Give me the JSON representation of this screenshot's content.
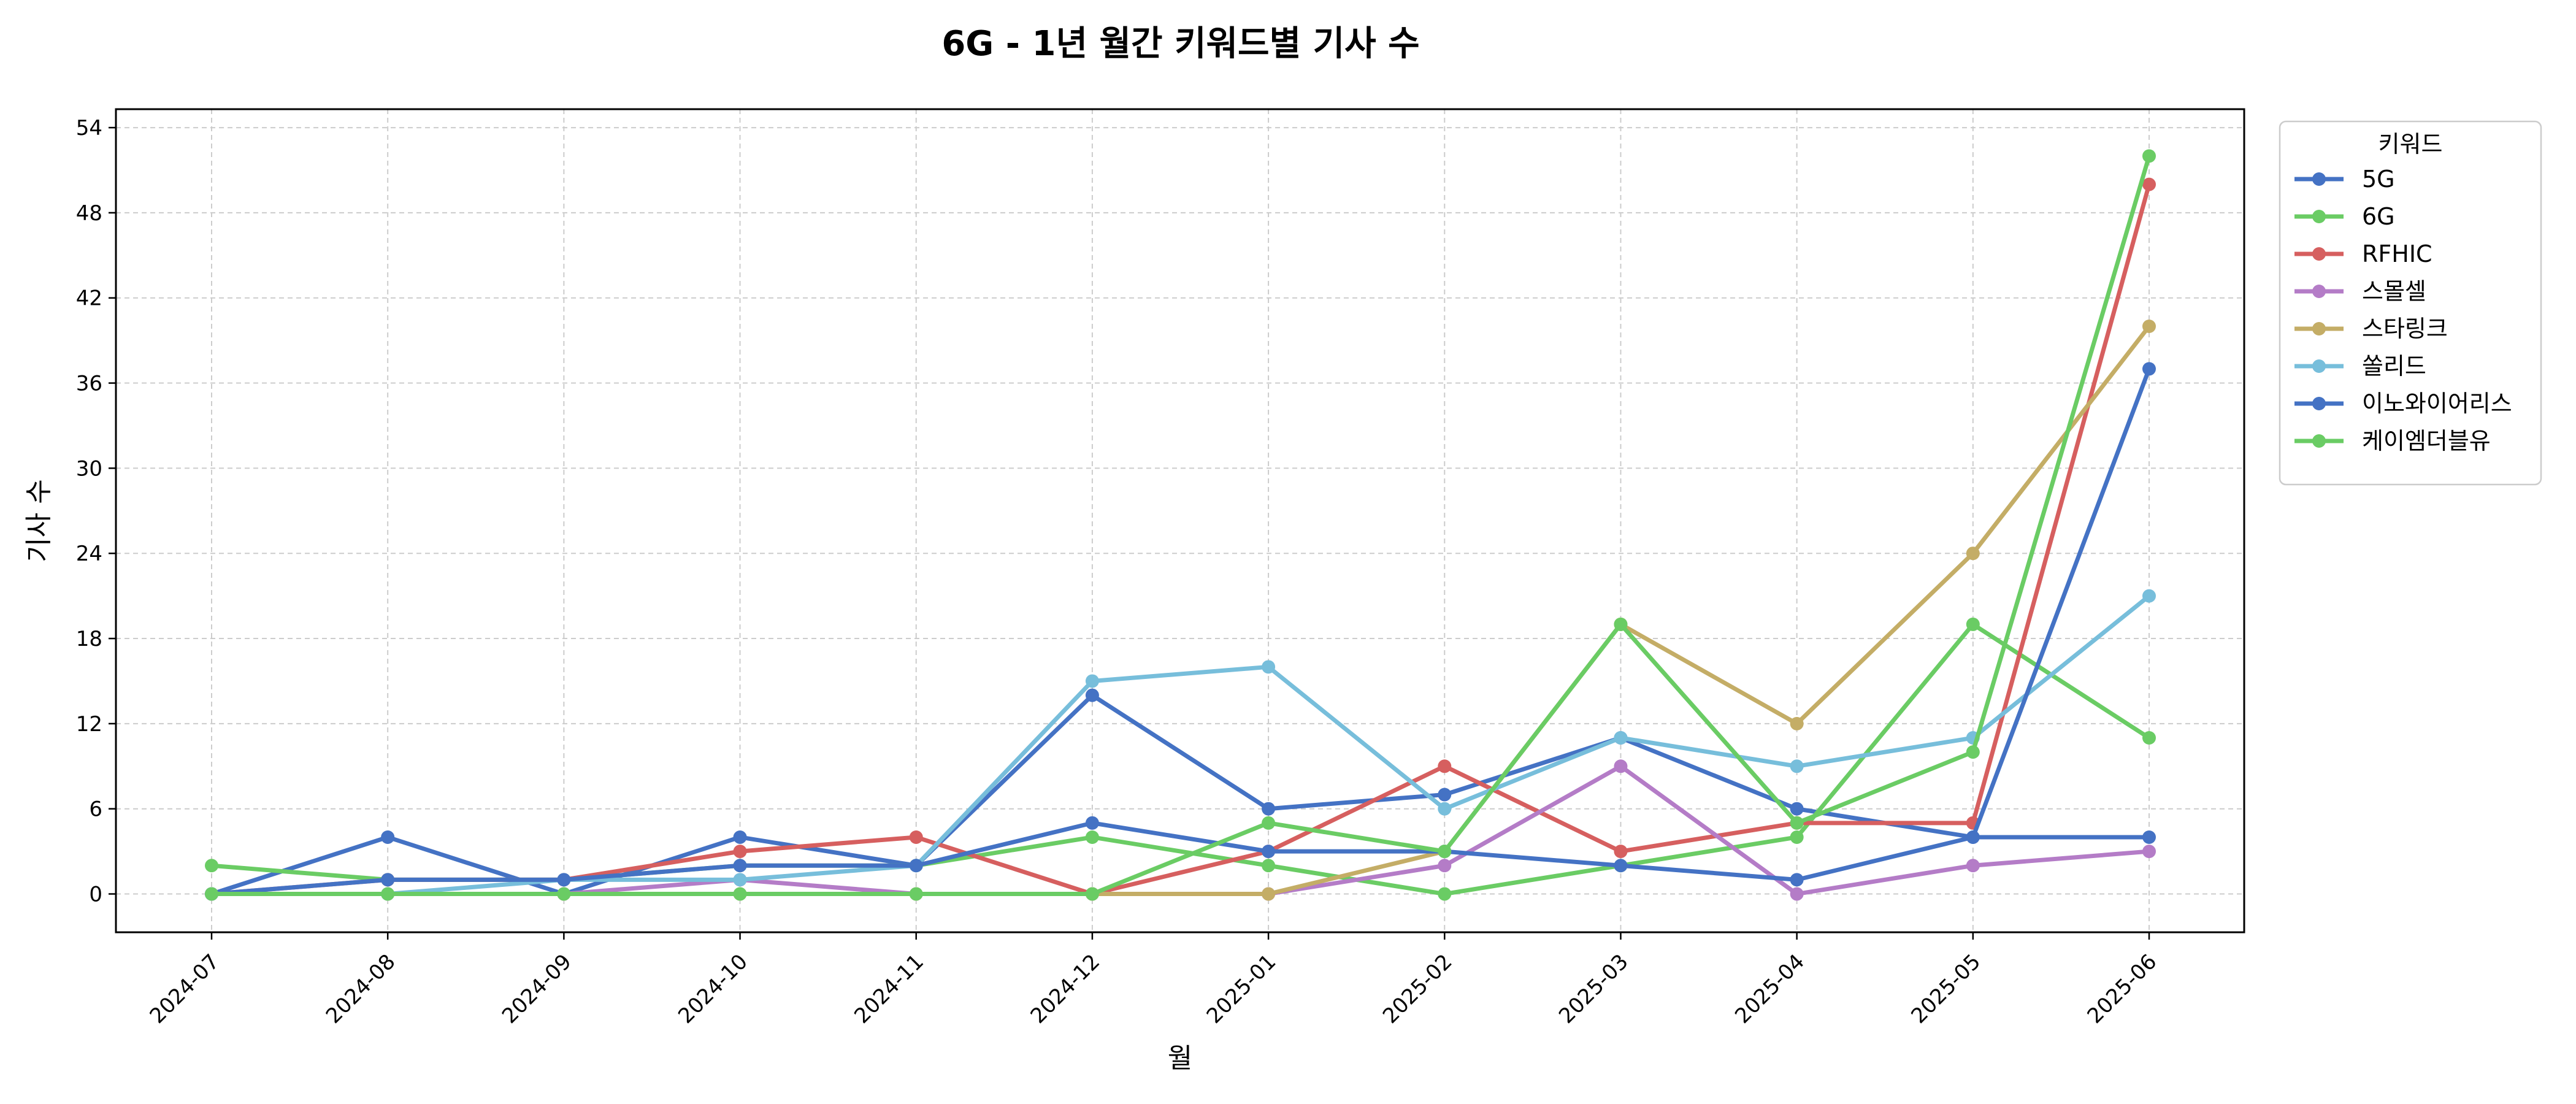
{
  "chart_data": {
    "type": "line",
    "title": "6G - 1년 월간 키워드별 기사 수",
    "xlabel": "월",
    "ylabel": "기사 수",
    "categories": [
      "2024-07",
      "2024-08",
      "2024-09",
      "2024-10",
      "2024-11",
      "2024-12",
      "2025-01",
      "2025-02",
      "2025-03",
      "2025-04",
      "2025-05",
      "2025-06"
    ],
    "ylim": [
      -2.7,
      55.3
    ],
    "yticks": [
      0,
      6,
      12,
      18,
      24,
      30,
      36,
      42,
      48,
      54
    ],
    "grid": true,
    "legend_title": "키워드",
    "legend_position": "outside-top-right",
    "series": [
      {
        "name": "5G",
        "color": "#4472C4",
        "values": [
          0,
          4,
          0,
          4,
          2,
          14,
          6,
          7,
          11,
          6,
          4,
          4
        ]
      },
      {
        "name": "6G",
        "color": "#6ACC64",
        "values": [
          2,
          1,
          1,
          2,
          2,
          4,
          2,
          0,
          2,
          4,
          19,
          11
        ]
      },
      {
        "name": "RFHIC",
        "color": "#D65F5F",
        "values": [
          0,
          1,
          1,
          3,
          4,
          0,
          3,
          9,
          3,
          5,
          5,
          50
        ]
      },
      {
        "name": "스몰셀",
        "color": "#B47CC7",
        "values": [
          0,
          0,
          0,
          1,
          0,
          0,
          0,
          2,
          9,
          0,
          2,
          3
        ]
      },
      {
        "name": "스타링크",
        "color": "#C4AD66",
        "values": [
          0,
          0,
          0,
          0,
          0,
          0,
          0,
          3,
          19,
          12,
          24,
          40
        ]
      },
      {
        "name": "쏠리드",
        "color": "#77BEDB",
        "values": [
          0,
          0,
          1,
          1,
          2,
          15,
          16,
          6,
          11,
          9,
          11,
          21
        ]
      },
      {
        "name": "이노와이어리스",
        "color": "#4472C4",
        "values": [
          0,
          1,
          1,
          2,
          2,
          5,
          3,
          3,
          2,
          1,
          4,
          37
        ]
      },
      {
        "name": "케이엠더블유",
        "color": "#6ACC64",
        "values": [
          0,
          0,
          0,
          0,
          0,
          0,
          5,
          3,
          19,
          5,
          10,
          52
        ]
      }
    ]
  }
}
